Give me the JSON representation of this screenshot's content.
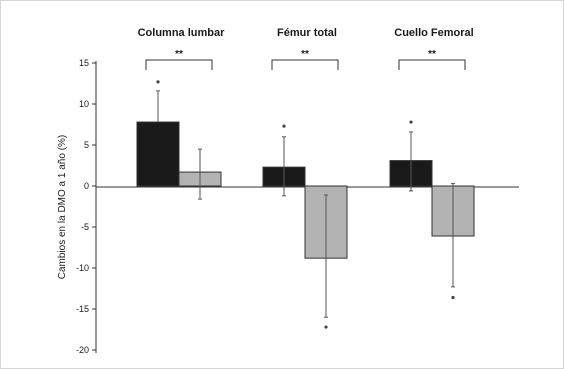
{
  "chart_data": {
    "type": "bar",
    "title": "",
    "xlabel": "",
    "ylabel": "Cambios en la DMO a 1 año (%)",
    "ylim": [
      -20,
      15
    ],
    "yticks": [
      15,
      10,
      5,
      0,
      -5,
      -10,
      -15,
      -20
    ],
    "categories": [
      "Columna lumbar",
      "Fémur total",
      "Cuello Femoral"
    ],
    "significance": [
      "**",
      "**",
      "**"
    ],
    "colors": [
      "#1a1a1a",
      "#b3b3b3"
    ],
    "series": [
      {
        "values": [
          7.8,
          2.3,
          3.1
        ],
        "err_high": [
          11.6,
          6.0,
          6.6
        ],
        "err_low": [
          null,
          -1.2,
          -0.6
        ],
        "outliers": [
          [
            12.7
          ],
          [
            7.3
          ],
          [
            7.8
          ]
        ]
      },
      {
        "values": [
          1.7,
          -8.8,
          -6.1
        ],
        "err_high": [
          4.5,
          -1.1,
          0.3
        ],
        "err_low": [
          -1.6,
          -16.0,
          -12.3
        ],
        "outliers": [
          [],
          [
            -17.2
          ],
          [
            -13.6
          ]
        ]
      }
    ],
    "grid": false
  }
}
